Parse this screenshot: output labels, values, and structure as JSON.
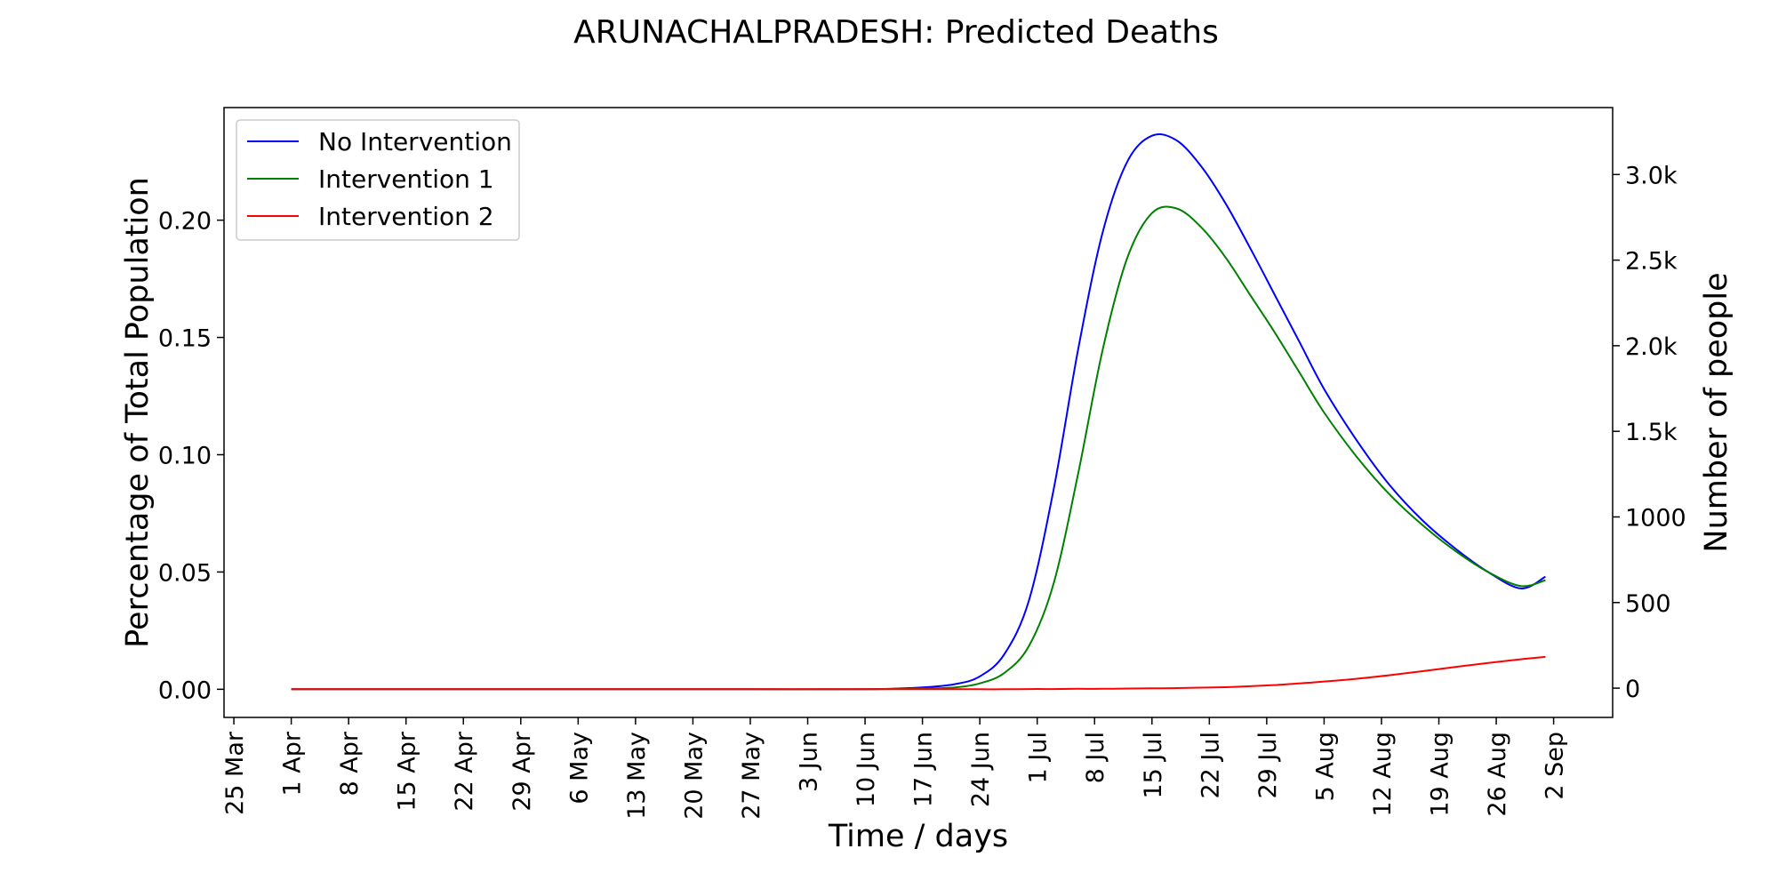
{
  "chart_data": {
    "type": "line",
    "title": "ARUNACHALPRADESH: Predicted Deaths",
    "xlabel": "Time / days",
    "ylabel": "Percentage of Total Population",
    "y2label": "Number of people",
    "x_ticks": [
      "25 Mar",
      "1 Apr",
      "8 Apr",
      "15 Apr",
      "22 Apr",
      "29 Apr",
      "6 May",
      "13 May",
      "20 May",
      "27 May",
      "3 Jun",
      "10 Jun",
      "17 Jun",
      "24 Jun",
      "1 Jul",
      "8 Jul",
      "15 Jul",
      "22 Jul",
      "29 Jul",
      "5 Aug",
      "12 Aug",
      "19 Aug",
      "26 Aug",
      "2 Sep"
    ],
    "y_ticks": [
      "0.00",
      "0.05",
      "0.10",
      "0.15",
      "0.20"
    ],
    "y2_ticks": [
      "0",
      "500",
      "1000",
      "1.5k",
      "2.0k",
      "2.5k",
      "3.0k"
    ],
    "ylim": [
      -0.012,
      0.248
    ],
    "y2lim": [
      -171,
      3391
    ],
    "legend_position": "upper-left",
    "grid": false,
    "x": [
      "2020-04-01",
      "2020-04-15",
      "2020-04-29",
      "2020-05-13",
      "2020-05-27",
      "2020-06-10",
      "2020-06-17",
      "2020-06-21",
      "2020-06-24",
      "2020-06-27",
      "2020-06-30",
      "2020-07-03",
      "2020-07-06",
      "2020-07-09",
      "2020-07-12",
      "2020-07-15",
      "2020-07-18",
      "2020-07-21",
      "2020-07-24",
      "2020-07-27",
      "2020-07-30",
      "2020-08-02",
      "2020-08-05",
      "2020-08-09",
      "2020-08-13",
      "2020-08-17",
      "2020-08-21",
      "2020-08-25",
      "2020-08-29",
      "2020-09-01"
    ],
    "series": [
      {
        "name": "No Intervention",
        "color": "#0000ff",
        "values": [
          0,
          0,
          0,
          0,
          0,
          0,
          0.0008,
          0.0022,
          0.0055,
          0.015,
          0.038,
          0.085,
          0.145,
          0.195,
          0.225,
          0.236,
          0.234,
          0.223,
          0.207,
          0.188,
          0.168,
          0.148,
          0.128,
          0.106,
          0.087,
          0.072,
          0.06,
          0.05,
          0.043,
          0.048
        ]
      },
      {
        "name": "Intervention 1",
        "color": "#008000",
        "values": [
          0,
          0,
          0,
          0,
          0,
          0,
          0.0003,
          0.0008,
          0.0025,
          0.007,
          0.0185,
          0.045,
          0.092,
          0.145,
          0.184,
          0.203,
          0.205,
          0.197,
          0.184,
          0.168,
          0.152,
          0.135,
          0.118,
          0.099,
          0.083,
          0.07,
          0.059,
          0.05,
          0.044,
          0.0465
        ]
      },
      {
        "name": "Intervention 2",
        "color": "#ff0000",
        "values": [
          0,
          0,
          0,
          0,
          0,
          0,
          0,
          0,
          0,
          0,
          0.0001,
          0.0001,
          0.0002,
          0.0002,
          0.0003,
          0.0004,
          0.0005,
          0.0007,
          0.0009,
          0.0013,
          0.0018,
          0.0025,
          0.0033,
          0.0045,
          0.006,
          0.0077,
          0.0095,
          0.0112,
          0.0128,
          0.0138
        ]
      }
    ]
  }
}
